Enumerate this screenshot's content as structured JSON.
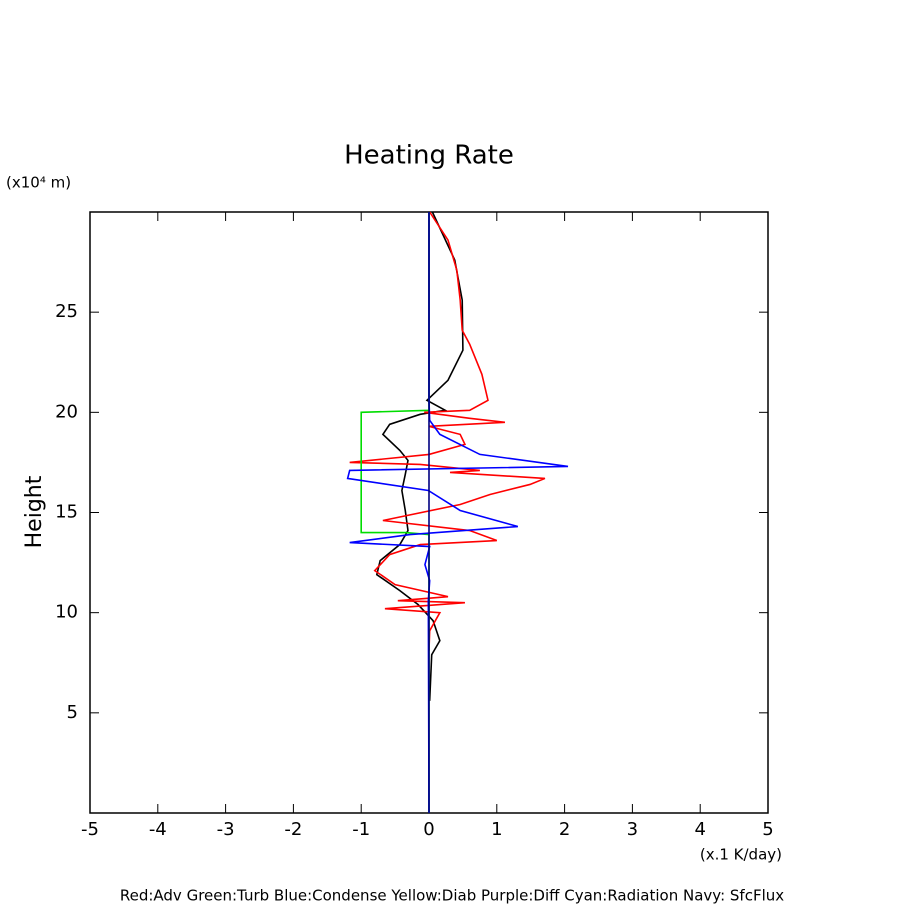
{
  "chart_data": {
    "type": "line",
    "title": "Heating Rate",
    "ylabel": "Height",
    "yunit": "(x10⁴ m)",
    "xunit": "(x.1 K/day)",
    "caption": "Red:Adv  Green:Turb  Blue:Condense  Yellow:Diab  Purple:Diff  Cyan:Radiation  Navy: SfcFlux",
    "xlim": [
      -5,
      5
    ],
    "ylim": [
      0,
      30
    ],
    "xticks": [
      -5,
      -4,
      -3,
      -2,
      -1,
      0,
      1,
      2,
      3,
      4,
      5
    ],
    "yticks": [
      5,
      10,
      15,
      20,
      25
    ],
    "series": [
      {
        "color": "#000000",
        "x": [
          0.05,
          0.38,
          0.49,
          0.5,
          0.28,
          -0.03,
          0.24,
          -0.13,
          -0.58,
          -0.68,
          -0.43,
          -0.31,
          -0.35,
          -0.4,
          -0.35,
          -0.31,
          -0.43,
          -0.72,
          -0.77,
          -0.43,
          -0.16,
          0.06,
          0.16,
          0.04,
          0.01
        ],
        "y": [
          30,
          27.6,
          25.6,
          23.1,
          21.6,
          20.6,
          20.1,
          19.9,
          19.4,
          18.9,
          18.1,
          17.6,
          16.9,
          16.1,
          15.1,
          14.1,
          13.4,
          12.6,
          11.9,
          11.1,
          10.4,
          9.6,
          8.6,
          7.9,
          5.6
        ]
      },
      {
        "color": "#ff0000",
        "x": [
          0.01,
          0.28,
          0.41,
          0.46,
          0.49,
          0.6,
          0.78,
          0.87,
          0.6,
          -0.07,
          0.6,
          1.12,
          0,
          0.46,
          0.53,
          0,
          -1.17,
          -0.13,
          0.75,
          0.31,
          1.71,
          1.49,
          0.9,
          0.46,
          -0.68,
          0.6,
          1.0,
          -0.13,
          -0.58,
          -0.8,
          -0.5,
          0.28,
          -0.46,
          0.53,
          -0.65,
          0.16,
          0.01,
          0
        ],
        "y": [
          30,
          28.6,
          27.1,
          25.6,
          24.1,
          23.4,
          21.9,
          20.6,
          20.1,
          20,
          19.7,
          19.5,
          19.3,
          18.9,
          18.4,
          17.9,
          17.5,
          17.4,
          17.1,
          17.0,
          16.7,
          16.4,
          15.9,
          15.4,
          14.6,
          14.1,
          13.6,
          13.4,
          12.9,
          12.1,
          11.4,
          10.8,
          10.6,
          10.5,
          10.2,
          10.0,
          9.1,
          8.1
        ]
      },
      {
        "color": "#00dd00",
        "x": [
          0,
          0,
          -1.0,
          -1.0,
          -0.35,
          0,
          0
        ],
        "y": [
          30,
          20.1,
          20.0,
          14.0,
          14.0,
          13.9,
          0
        ]
      },
      {
        "color": "#0000ff",
        "x": [
          0,
          0,
          0.01,
          0.16,
          0.75,
          2.05,
          -1.17,
          -1.2,
          -0.01,
          0.46,
          1.31,
          -0.28,
          -1.17,
          0.01,
          -0.06,
          0.01,
          -0.01,
          0
        ],
        "y": [
          30,
          20.6,
          19.6,
          18.9,
          17.9,
          17.3,
          17.1,
          16.7,
          16.1,
          15.1,
          14.3,
          13.9,
          13.5,
          13.3,
          12.4,
          11.6,
          10.6,
          0
        ]
      },
      {
        "color": "#000080",
        "x": [
          0,
          0
        ],
        "y": [
          0,
          30
        ]
      }
    ]
  }
}
